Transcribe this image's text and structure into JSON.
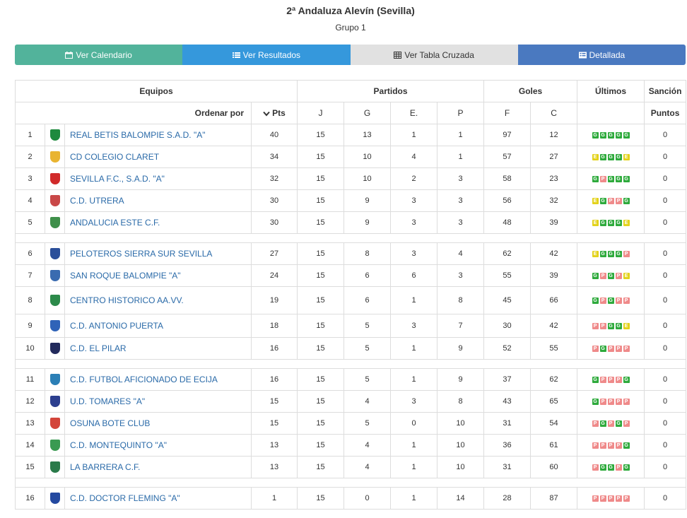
{
  "header": {
    "title": "2ª Andaluza Alevín (Sevilla)",
    "subtitle": "Grupo 1"
  },
  "tabs": [
    {
      "label": "Ver Calendario",
      "icon": "calendar-icon"
    },
    {
      "label": "Ver Resultados",
      "icon": "list-icon"
    },
    {
      "label": "Ver Tabla Cruzada",
      "icon": "grid-icon"
    },
    {
      "label": "Detallada",
      "icon": "detail-icon"
    }
  ],
  "colors": {
    "cal": "#52b39b",
    "res": "#3598dc",
    "tab": "#e1e1e1",
    "det": "#4a79c0",
    "win": "#2eaa3c",
    "draw": "#e3d21b",
    "loss": "#ef8a8a",
    "link": "#2a6aa8"
  },
  "table": {
    "headers": {
      "equipos": "Equipos",
      "partidos": "Partidos",
      "goles": "Goles",
      "ultimos": "Últimos",
      "sancion": "Sanción"
    },
    "subheaders": {
      "ordenar": "Ordenar por",
      "pts": "Pts",
      "j": "J",
      "g": "G",
      "e": "E.",
      "p": "P",
      "f": "F",
      "c": "C",
      "puntos": "Puntos"
    },
    "groups": [
      [
        {
          "pos": "1",
          "name": "REAL BETIS BALOMPIE S.A.D. \"A\"",
          "pts": "40",
          "j": "15",
          "g": "13",
          "e": "1",
          "p": "1",
          "f": "97",
          "c": "12",
          "last": [
            "G",
            "G",
            "G",
            "G",
            "G"
          ],
          "sancion": "0",
          "crest": "#1e8a3e"
        },
        {
          "pos": "2",
          "name": "CD COLEGIO CLARET",
          "pts": "34",
          "j": "15",
          "g": "10",
          "e": "4",
          "p": "1",
          "f": "57",
          "c": "27",
          "last": [
            "E",
            "G",
            "G",
            "G",
            "E"
          ],
          "sancion": "0",
          "crest": "#e9b431"
        },
        {
          "pos": "3",
          "name": "SEVILLA F.C., S.A.D. \"A\"",
          "pts": "32",
          "j": "15",
          "g": "10",
          "e": "2",
          "p": "3",
          "f": "58",
          "c": "23",
          "last": [
            "G",
            "P",
            "G",
            "G",
            "G"
          ],
          "sancion": "0",
          "crest": "#d12a2a"
        },
        {
          "pos": "4",
          "name": "C.D. UTRERA",
          "pts": "30",
          "j": "15",
          "g": "9",
          "e": "3",
          "p": "3",
          "f": "56",
          "c": "32",
          "last": [
            "E",
            "G",
            "P",
            "P",
            "G"
          ],
          "sancion": "0",
          "crest": "#c94848"
        },
        {
          "pos": "5",
          "name": "ANDALUCIA ESTE C.F.",
          "pts": "30",
          "j": "15",
          "g": "9",
          "e": "3",
          "p": "3",
          "f": "48",
          "c": "39",
          "last": [
            "E",
            "G",
            "G",
            "G",
            "E"
          ],
          "sancion": "0",
          "crest": "#3f8f4a"
        }
      ],
      [
        {
          "pos": "6",
          "name": "PELOTEROS SIERRA SUR SEVILLA",
          "pts": "27",
          "j": "15",
          "g": "8",
          "e": "3",
          "p": "4",
          "f": "62",
          "c": "42",
          "last": [
            "E",
            "G",
            "G",
            "G",
            "P"
          ],
          "sancion": "0",
          "crest": "#2b4f9a"
        },
        {
          "pos": "7",
          "name": "SAN ROQUE BALOMPIE \"A\"",
          "pts": "24",
          "j": "15",
          "g": "6",
          "e": "6",
          "p": "3",
          "f": "55",
          "c": "39",
          "last": [
            "G",
            "P",
            "G",
            "P",
            "E"
          ],
          "sancion": "0",
          "crest": "#3a6bb0"
        },
        {
          "pos": "8",
          "name": "CENTRO HISTORICO AA.VV.",
          "pts": "19",
          "j": "15",
          "g": "6",
          "e": "1",
          "p": "8",
          "f": "45",
          "c": "66",
          "last": [
            "G",
            "P",
            "G",
            "P",
            "P"
          ],
          "sancion": "0",
          "crest": "#2c8a4a"
        },
        {
          "pos": "9",
          "name": "C.D. ANTONIO PUERTA",
          "pts": "18",
          "j": "15",
          "g": "5",
          "e": "3",
          "p": "7",
          "f": "30",
          "c": "42",
          "last": [
            "P",
            "P",
            "G",
            "G",
            "E"
          ],
          "sancion": "0",
          "crest": "#2f63b8"
        },
        {
          "pos": "10",
          "name": "C.D. EL PILAR",
          "pts": "16",
          "j": "15",
          "g": "5",
          "e": "1",
          "p": "9",
          "f": "52",
          "c": "55",
          "last": [
            "P",
            "G",
            "P",
            "P",
            "P"
          ],
          "sancion": "0",
          "crest": "#222a5c"
        }
      ],
      [
        {
          "pos": "11",
          "name": "C.D. FUTBOL AFICIONADO DE ECIJA",
          "pts": "16",
          "j": "15",
          "g": "5",
          "e": "1",
          "p": "9",
          "f": "37",
          "c": "62",
          "last": [
            "G",
            "P",
            "P",
            "P",
            "G"
          ],
          "sancion": "0",
          "crest": "#2b7fb6"
        },
        {
          "pos": "12",
          "name": "U.D. TOMARES \"A\"",
          "pts": "15",
          "j": "15",
          "g": "4",
          "e": "3",
          "p": "8",
          "f": "43",
          "c": "65",
          "last": [
            "G",
            "P",
            "P",
            "P",
            "P"
          ],
          "sancion": "0",
          "crest": "#2c3f8f"
        },
        {
          "pos": "13",
          "name": "OSUNA BOTE CLUB",
          "pts": "15",
          "j": "15",
          "g": "5",
          "e": "0",
          "p": "10",
          "f": "31",
          "c": "54",
          "last": [
            "P",
            "G",
            "P",
            "G",
            "P"
          ],
          "sancion": "0",
          "crest": "#d3453a"
        },
        {
          "pos": "14",
          "name": "C.D. MONTEQUINTO \"A\"",
          "pts": "13",
          "j": "15",
          "g": "4",
          "e": "1",
          "p": "10",
          "f": "36",
          "c": "61",
          "last": [
            "P",
            "P",
            "P",
            "P",
            "G"
          ],
          "sancion": "0",
          "crest": "#3a9a52"
        },
        {
          "pos": "15",
          "name": "LA BARRERA C.F.",
          "pts": "13",
          "j": "15",
          "g": "4",
          "e": "1",
          "p": "10",
          "f": "31",
          "c": "60",
          "last": [
            "P",
            "G",
            "G",
            "P",
            "G"
          ],
          "sancion": "0",
          "crest": "#2a7a4a"
        }
      ],
      [
        {
          "pos": "16",
          "name": "C.D. DOCTOR FLEMING \"A\"",
          "pts": "1",
          "j": "15",
          "g": "0",
          "e": "1",
          "p": "14",
          "f": "28",
          "c": "87",
          "last": [
            "P",
            "P",
            "P",
            "P",
            "P"
          ],
          "sancion": "0",
          "crest": "#2449a0"
        }
      ]
    ]
  }
}
